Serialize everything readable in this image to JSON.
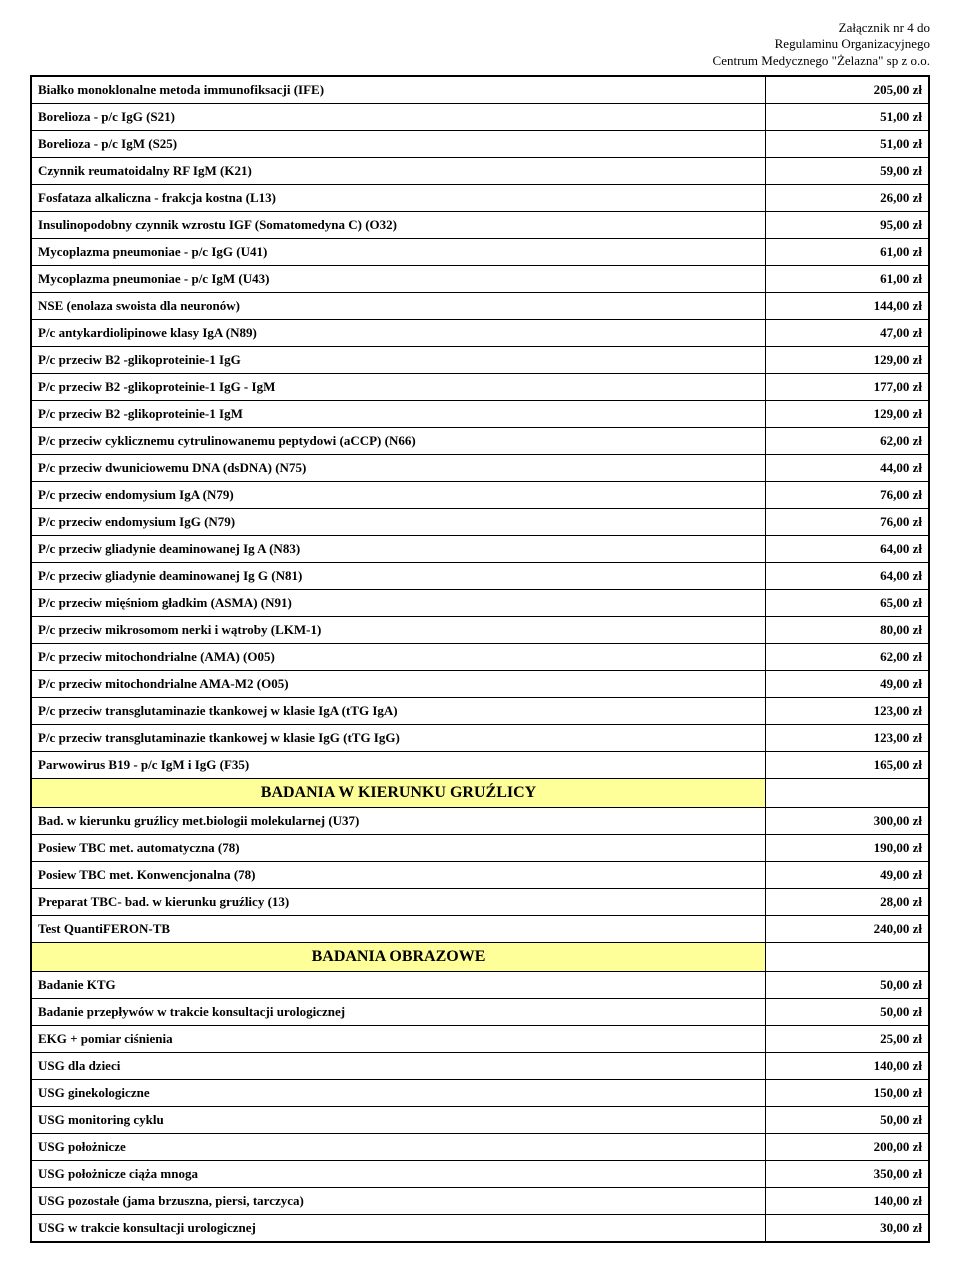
{
  "header": {
    "line1": "Załącznik nr 4 do",
    "line2": "Regulaminu Organizacyjnego",
    "line3": "Centrum Medycznego \"Żelazna\" sp z o.o."
  },
  "section_bg_color": "#ffff99",
  "rows": [
    {
      "label": "Białko monoklonalne metoda immunofiksacji (IFE)",
      "price": "205,00 zł"
    },
    {
      "label": "Borelioza - p/c IgG (S21)",
      "price": "51,00 zł"
    },
    {
      "label": "Borelioza - p/c IgM (S25)",
      "price": "51,00 zł"
    },
    {
      "label": "Czynnik reumatoidalny RF IgM (K21)",
      "price": "59,00 zł"
    },
    {
      "label": "Fosfataza alkaliczna - frakcja kostna (L13)",
      "price": "26,00 zł"
    },
    {
      "label": "Insulinopodobny czynnik wzrostu IGF (Somatomedyna C) (O32)",
      "price": "95,00 zł"
    },
    {
      "label": "Mycoplazma pneumoniae - p/c IgG (U41)",
      "price": "61,00 zł"
    },
    {
      "label": "Mycoplazma pneumoniae - p/c IgM (U43)",
      "price": "61,00 zł"
    },
    {
      "label": "NSE (enolaza swoista dla neuronów)",
      "price": "144,00 zł"
    },
    {
      "label": "P/c antykardiolipinowe klasy IgA (N89)",
      "price": "47,00 zł"
    },
    {
      "label": "P/c przeciw B2 -glikoproteinie-1 IgG",
      "price": "129,00 zł"
    },
    {
      "label": "P/c przeciw B2 -glikoproteinie-1 IgG - IgM",
      "price": "177,00 zł"
    },
    {
      "label": "P/c przeciw B2 -glikoproteinie-1 IgM",
      "price": "129,00 zł"
    },
    {
      "label": "P/c przeciw cyklicznemu cytrulinowanemu peptydowi (aCCP) (N66)",
      "price": "62,00 zł"
    },
    {
      "label": "P/c przeciw dwuniciowemu DNA (dsDNA) (N75)",
      "price": "44,00 zł"
    },
    {
      "label": "P/c przeciw endomysium IgA (N79)",
      "price": "76,00 zł"
    },
    {
      "label": "P/c przeciw endomysium IgG (N79)",
      "price": "76,00 zł"
    },
    {
      "label": "P/c przeciw gliadynie deaminowanej Ig A (N83)",
      "price": "64,00 zł"
    },
    {
      "label": "P/c przeciw gliadynie deaminowanej Ig G (N81)",
      "price": "64,00 zł"
    },
    {
      "label": "P/c przeciw mięśniom gładkim (ASMA) (N91)",
      "price": "65,00 zł"
    },
    {
      "label": "P/c przeciw mikrosomom nerki i wątroby (LKM-1)",
      "price": "80,00 zł"
    },
    {
      "label": "P/c przeciw mitochondrialne (AMA) (O05)",
      "price": "62,00 zł"
    },
    {
      "label": "P/c przeciw mitochondrialne AMA-M2 (O05)",
      "price": "49,00 zł"
    },
    {
      "label": "P/c przeciw transglutaminazie tkankowej w klasie IgA (tTG IgA)",
      "price": "123,00 zł"
    },
    {
      "label": "P/c przeciw transglutaminazie tkankowej w klasie IgG (tTG IgG)",
      "price": "123,00 zł"
    },
    {
      "label": "Parwowirus B19  - p/c IgM i IgG (F35)",
      "price": "165,00 zł"
    }
  ],
  "section1": {
    "title": "BADANIA W KIERUNKU GRUŹLICY",
    "rows": [
      {
        "label": "Bad. w kierunku gruźlicy met.biologii molekularnej (U37)",
        "price": "300,00 zł"
      },
      {
        "label": "Posiew TBC met. automatyczna (78)",
        "price": "190,00 zł"
      },
      {
        "label": "Posiew TBC met. Konwencjonalna (78)",
        "price": "49,00 zł"
      },
      {
        "label": "Preparat TBC- bad. w kierunku gruźlicy (13)",
        "price": "28,00 zł"
      },
      {
        "label": "Test QuantiFERON-TB",
        "price": "240,00 zł"
      }
    ]
  },
  "section2": {
    "title": "BADANIA OBRAZOWE",
    "rows": [
      {
        "label": "Badanie KTG",
        "price": "50,00 zł"
      },
      {
        "label": "Badanie przepływów w trakcie konsultacji urologicznej",
        "price": "50,00 zł"
      },
      {
        "label": "EKG + pomiar ciśnienia",
        "price": "25,00 zł"
      },
      {
        "label": "USG dla dzieci",
        "price": "140,00 zł"
      },
      {
        "label": "USG ginekologiczne",
        "price": "150,00 zł"
      },
      {
        "label": "USG monitoring cyklu",
        "price": "50,00 zł"
      },
      {
        "label": "USG położnicze",
        "price": "200,00 zł"
      },
      {
        "label": "USG położnicze ciąża mnoga",
        "price": "350,00 zł"
      },
      {
        "label": "USG pozostałe (jama brzuszna, piersi, tarczyca)",
        "price": "140,00 zł"
      },
      {
        "label": "USG w trakcie konsultacji urologicznej",
        "price": "30,00 zł"
      }
    ]
  }
}
